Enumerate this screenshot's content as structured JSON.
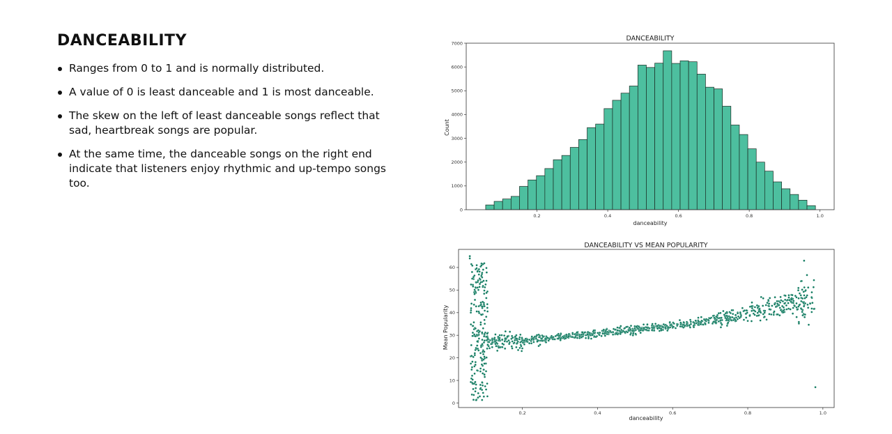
{
  "slide": {
    "title": "DANCEABILITY",
    "bullets": [
      "Ranges from 0 to 1 and is normally distributed.",
      "A value of 0 is least danceable and 1 is most danceable.",
      "The skew on the left of least danceable songs reflect that sad, heartbreak songs are popular.",
      "At the same time, the danceable songs on the right end indicate that listeners enjoy rhythmic and up-tempo songs too."
    ]
  },
  "colors": {
    "histogram_bar": "#4dbf9f",
    "histogram_edge": "#1a2a22",
    "scatter_point": "#0f7a5f"
  },
  "chart_data": [
    {
      "type": "bar",
      "title": "DANCEABILITY",
      "xlabel": "danceability",
      "ylabel": "Count",
      "xlim": [
        0.0,
        1.04
      ],
      "ylim": [
        0,
        7000
      ],
      "xticks": [
        0.2,
        0.4,
        0.6,
        0.8,
        1.0
      ],
      "xtick_labels": [
        "0.2",
        "0.4",
        "0.6",
        "0.8",
        "1.0"
      ],
      "yticks": [
        0,
        1000,
        2000,
        3000,
        4000,
        5000,
        6000,
        7000
      ],
      "ytick_labels": [
        "0",
        "1000",
        "2000",
        "3000",
        "4000",
        "5000",
        "6000",
        "7000"
      ],
      "grid": false,
      "bin_edges": [
        0.055,
        0.0789,
        0.1028,
        0.1267,
        0.1506,
        0.1745,
        0.1984,
        0.2223,
        0.2462,
        0.2701,
        0.294,
        0.3179,
        0.3418,
        0.3657,
        0.3896,
        0.4135,
        0.4374,
        0.4613,
        0.4852,
        0.5091,
        0.533,
        0.5569,
        0.5808,
        0.6047,
        0.6286,
        0.6525,
        0.6764,
        0.7003,
        0.7242,
        0.7481,
        0.772,
        0.7959,
        0.8198,
        0.8437,
        0.8676,
        0.8915,
        0.9154,
        0.9393,
        0.9632,
        0.9871
      ],
      "values": [
        200,
        350,
        450,
        560,
        980,
        1250,
        1430,
        1730,
        2100,
        2280,
        2620,
        2950,
        3450,
        3600,
        4250,
        4600,
        4900,
        5200,
        6080,
        5980,
        6160,
        6680,
        6150,
        6260,
        6220,
        5700,
        5150,
        5080,
        4350,
        3560,
        3160,
        2560,
        2000,
        1620,
        1170,
        880,
        640,
        400,
        170
      ]
    },
    {
      "type": "scatter",
      "title": "DANCEABILITY VS MEAN POPULARITY",
      "xlabel": "danceability",
      "ylabel": "Mean Popularity",
      "xlim": [
        0.03,
        1.03
      ],
      "ylim": [
        -2,
        68
      ],
      "xticks": [
        0.2,
        0.4,
        0.6,
        0.8,
        1.0
      ],
      "xtick_labels": [
        "0.2",
        "0.4",
        "0.6",
        "0.8",
        "1.0"
      ],
      "yticks": [
        0,
        10,
        20,
        30,
        40,
        50,
        60
      ],
      "ytick_labels": [
        "0",
        "10",
        "20",
        "30",
        "40",
        "50",
        "60"
      ],
      "grid": false,
      "trend_points": [
        [
          0.1,
          27
        ],
        [
          0.2,
          27.5
        ],
        [
          0.3,
          29
        ],
        [
          0.4,
          31
        ],
        [
          0.5,
          32.5
        ],
        [
          0.6,
          34
        ],
        [
          0.7,
          36.5
        ],
        [
          0.8,
          40
        ],
        [
          0.9,
          44
        ],
        [
          0.98,
          45
        ]
      ],
      "outlier_points": [
        [
          0.06,
          65
        ],
        [
          0.06,
          64
        ],
        [
          0.95,
          63
        ],
        [
          0.98,
          7
        ]
      ]
    }
  ]
}
